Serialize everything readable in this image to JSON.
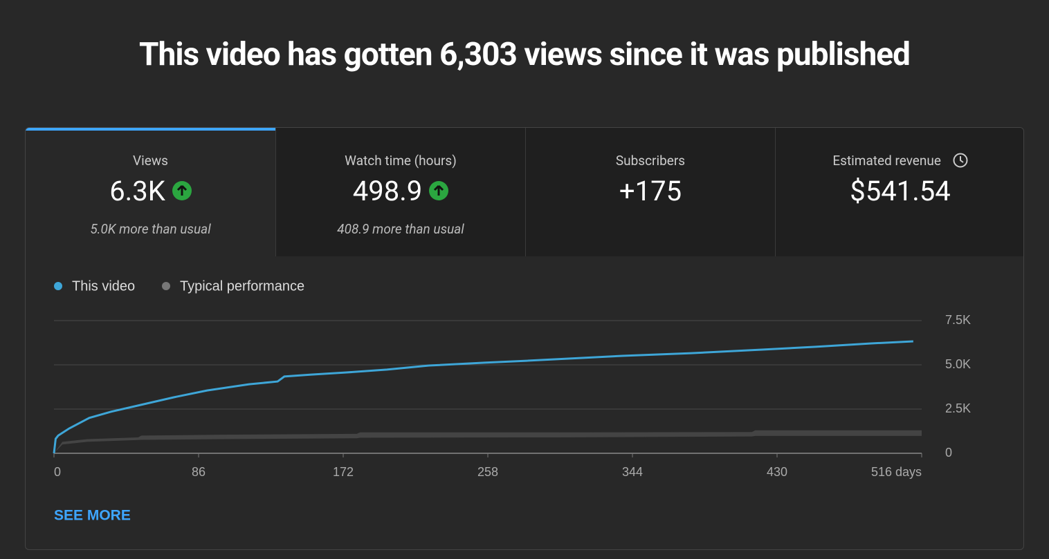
{
  "header": {
    "title": "This video has gotten 6,303 views since it was published"
  },
  "tabs": [
    {
      "label": "Views",
      "value": "6.3K",
      "comparison": "5.0K more than usual"
    },
    {
      "label": "Watch time (hours)",
      "value": "498.9",
      "comparison": "408.9 more than usual"
    },
    {
      "label": "Subscribers",
      "value": "+175"
    },
    {
      "label": "Estimated revenue",
      "value": "$541.54"
    }
  ],
  "chart_data": {
    "type": "line",
    "xlim": [
      0,
      516
    ],
    "xticks": [
      0,
      86,
      172,
      258,
      344,
      430,
      {
        "value": 516,
        "label": "516 days"
      }
    ],
    "ylim": [
      0,
      7500
    ],
    "yticks": [
      0,
      {
        "value": 2500,
        "label": "2.5K"
      },
      {
        "value": 5000,
        "label": "5.0K"
      },
      {
        "value": 7500,
        "label": "7.5K"
      }
    ],
    "grid": true,
    "series": [
      {
        "name": "This video",
        "color": "#3ea6d8",
        "x": [
          0,
          1,
          2.5,
          9,
          21,
          34,
          50,
          71,
          91,
          116,
          133,
          137,
          153,
          174,
          198,
          223,
          256,
          281,
          314,
          338,
          379,
          421,
          453,
          486,
          511
        ],
        "values": [
          0,
          820,
          1000,
          1400,
          2000,
          2350,
          2700,
          3160,
          3550,
          3900,
          4060,
          4340,
          4450,
          4570,
          4730,
          4960,
          5120,
          5230,
          5390,
          5510,
          5660,
          5860,
          6020,
          6210,
          6330
        ]
      },
      {
        "name": "Typical performance",
        "color": "#444444",
        "x": [
          0,
          5,
          20,
          50,
          52,
          100,
          180,
          182,
          300,
          415,
          417,
          516
        ],
        "high": [
          0,
          650,
          800,
          900,
          1000,
          1050,
          1100,
          1180,
          1180,
          1200,
          1300,
          1300
        ],
        "low": [
          0,
          500,
          650,
          750,
          760,
          800,
          850,
          880,
          900,
          950,
          980,
          980
        ]
      }
    ]
  },
  "footer": {
    "link": "SEE MORE"
  }
}
